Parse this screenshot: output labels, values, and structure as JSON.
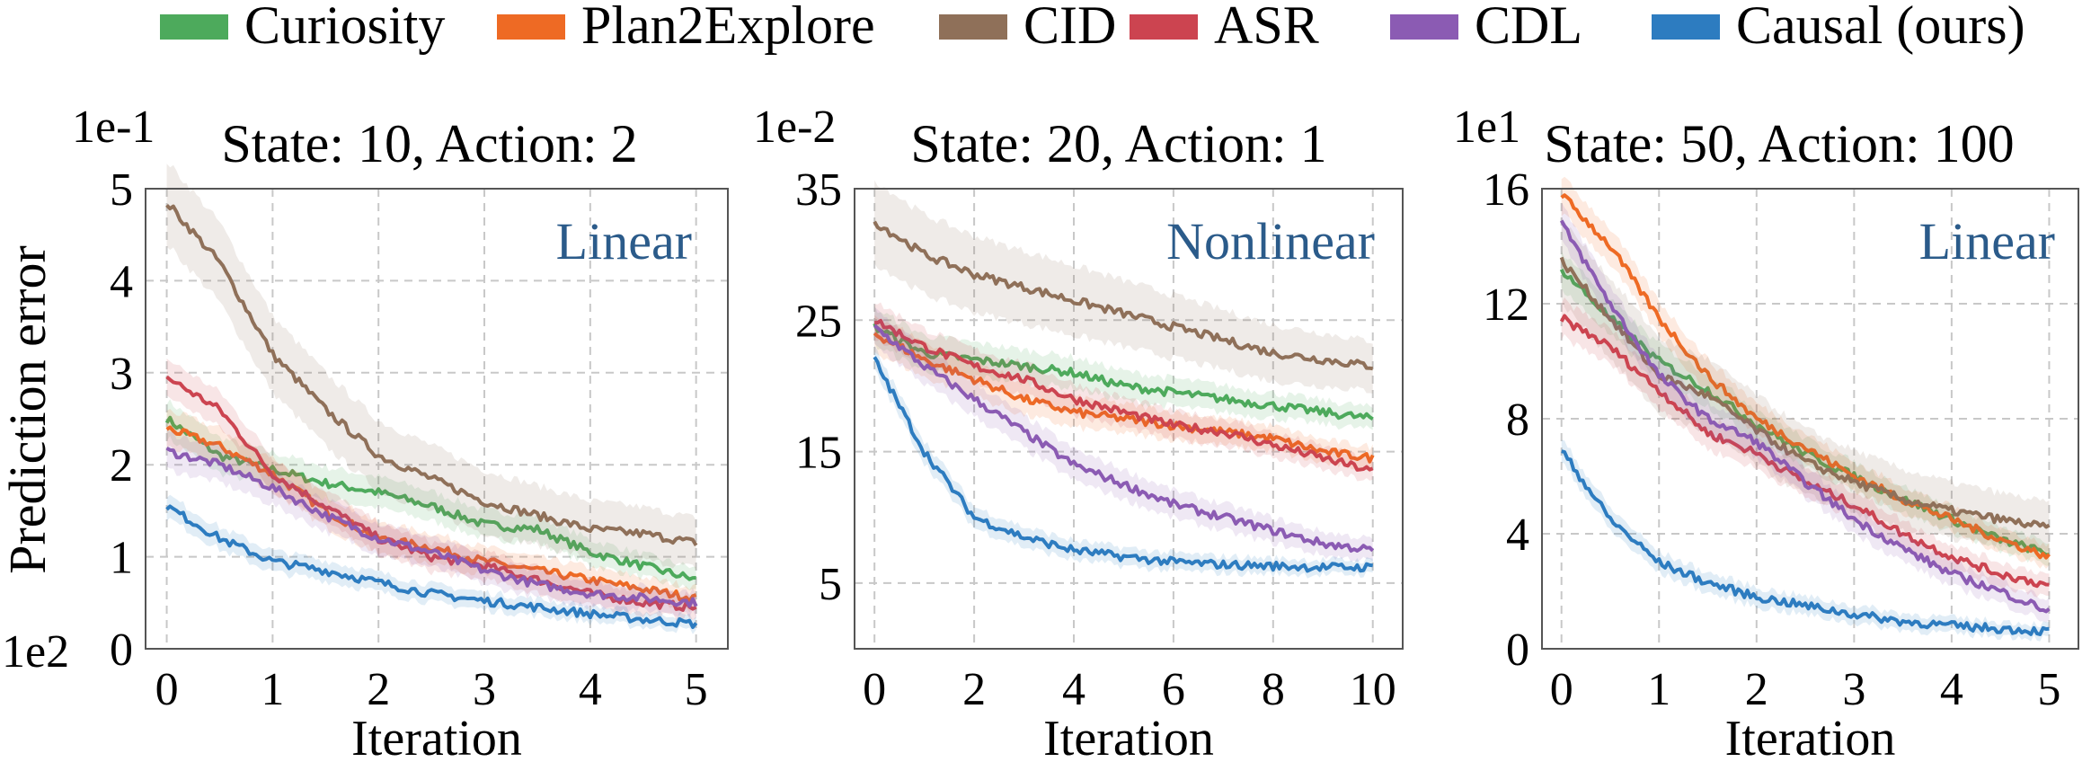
{
  "legend": [
    {
      "name": "Curiosity",
      "color": "#4daa5c"
    },
    {
      "name": "Plan2Explore",
      "color": "#ee6a24"
    },
    {
      "name": "CID",
      "color": "#8f7059"
    },
    {
      "name": "ASR",
      "color": "#cc4450"
    },
    {
      "name": "CDL",
      "color": "#8b5bb3"
    },
    {
      "name": "Causal (ours)",
      "color": "#2d7cc0"
    }
  ],
  "chart_data": [
    {
      "type": "line",
      "title": "State: 10, Action: 2",
      "regime": "Linear",
      "xlabel": "Iteration",
      "ylabel": "Prediction error",
      "y_multiplier": "1e-1",
      "x_multiplier": "1e2",
      "xlim": [
        -0.2,
        5.3
      ],
      "ylim": [
        0,
        5
      ],
      "xticks": [
        0,
        1,
        2,
        3,
        4,
        5
      ],
      "yticks": [
        0,
        1,
        2,
        3,
        4,
        5
      ],
      "grid": true,
      "x": [
        0,
        0.5,
        1,
        1.5,
        2,
        2.5,
        3,
        3.5,
        4,
        4.5,
        5
      ],
      "series": [
        {
          "name": "Curiosity",
          "values": [
            2.5,
            2.1,
            1.95,
            1.8,
            1.7,
            1.55,
            1.35,
            1.3,
            1.05,
            0.9,
            0.75
          ]
        },
        {
          "name": "Plan2Explore",
          "values": [
            2.4,
            2.2,
            1.9,
            1.5,
            1.2,
            1.1,
            0.95,
            0.85,
            0.75,
            0.65,
            0.55
          ]
        },
        {
          "name": "CID",
          "values": [
            4.85,
            4.2,
            3.2,
            2.6,
            2.1,
            1.85,
            1.6,
            1.45,
            1.3,
            1.25,
            1.15
          ]
        },
        {
          "name": "ASR",
          "values": [
            2.95,
            2.6,
            1.9,
            1.55,
            1.2,
            1.0,
            0.9,
            0.75,
            0.6,
            0.5,
            0.45
          ]
        },
        {
          "name": "CDL",
          "values": [
            2.15,
            2.0,
            1.75,
            1.45,
            1.2,
            1.05,
            0.85,
            0.7,
            0.6,
            0.55,
            0.5
          ]
        },
        {
          "name": "Causal (ours)",
          "values": [
            1.55,
            1.2,
            0.95,
            0.85,
            0.72,
            0.6,
            0.52,
            0.45,
            0.38,
            0.32,
            0.27
          ]
        }
      ]
    },
    {
      "type": "line",
      "title": "State: 20, Action: 1",
      "regime": "Nonlinear",
      "xlabel": "Iteration",
      "ylabel": "",
      "y_multiplier": "1e-2",
      "x_multiplier": "",
      "xlim": [
        -0.4,
        10.6
      ],
      "ylim": [
        0,
        35
      ],
      "xticks": [
        0,
        2,
        4,
        6,
        8,
        10
      ],
      "yticks": [
        5,
        15,
        25,
        35
      ],
      "grid": true,
      "x": [
        0,
        1,
        2,
        3,
        4,
        5,
        6,
        7,
        8,
        9,
        10
      ],
      "series": [
        {
          "name": "Curiosity",
          "values": [
            24.5,
            22.5,
            22,
            21.5,
            21,
            20,
            19.5,
            19,
            18.5,
            18,
            17.5
          ]
        },
        {
          "name": "Plan2Explore",
          "values": [
            24,
            22,
            20.5,
            19,
            18,
            17.5,
            17,
            16.5,
            16,
            15,
            14.5
          ]
        },
        {
          "name": "CID",
          "values": [
            32.5,
            30,
            28.5,
            27.5,
            26.5,
            25.5,
            24.5,
            23.5,
            22.5,
            22,
            21.5
          ]
        },
        {
          "name": "ASR",
          "values": [
            25,
            23,
            21.5,
            20.5,
            19,
            18,
            17,
            16.5,
            15.5,
            14.5,
            13.5
          ]
        },
        {
          "name": "CDL",
          "values": [
            24.5,
            21.5,
            19,
            16.5,
            14,
            12.5,
            11,
            10,
            9,
            8,
            7.5
          ]
        },
        {
          "name": "Causal (ours)",
          "values": [
            22,
            15,
            10,
            8.5,
            7.5,
            7,
            6.6,
            6.4,
            6.3,
            6.2,
            6.2
          ]
        }
      ]
    },
    {
      "type": "line",
      "title": "State: 50, Action: 100",
      "regime": "Linear",
      "xlabel": "Iteration",
      "ylabel": "",
      "y_multiplier": "1e1",
      "x_multiplier": "",
      "xlim": [
        -0.2,
        5.3
      ],
      "ylim": [
        0,
        16
      ],
      "xticks": [
        0,
        1,
        2,
        3,
        4,
        5
      ],
      "yticks": [
        0,
        4,
        8,
        12,
        16
      ],
      "grid": true,
      "x": [
        0,
        0.5,
        1,
        1.5,
        2,
        2.5,
        3,
        3.5,
        4,
        4.5,
        5
      ],
      "series": [
        {
          "name": "Curiosity",
          "values": [
            13.2,
            11.5,
            10,
            9,
            7.8,
            6.8,
            6,
            5.2,
            4.5,
            3.8,
            3.3
          ]
        },
        {
          "name": "Plan2Explore",
          "values": [
            15.8,
            14,
            11.5,
            9.5,
            8,
            7,
            6,
            5.2,
            4.5,
            3.8,
            3.2
          ]
        },
        {
          "name": "CID",
          "values": [
            13.5,
            11.5,
            9.5,
            8.8,
            7.6,
            6.5,
            5.8,
            5.2,
            4.8,
            4.5,
            4.2
          ]
        },
        {
          "name": "ASR",
          "values": [
            11.5,
            10.5,
            9,
            7.5,
            6.8,
            5.8,
            5,
            4,
            3.2,
            2.6,
            2.2
          ]
        },
        {
          "name": "CDL",
          "values": [
            14.8,
            12,
            9.5,
            8,
            7.2,
            5.8,
            4.5,
            3.5,
            2.6,
            2,
            1.3
          ]
        },
        {
          "name": "Causal (ours)",
          "values": [
            6.9,
            4.5,
            3,
            2.3,
            1.8,
            1.5,
            1.2,
            0.95,
            0.8,
            0.7,
            0.6
          ]
        }
      ]
    }
  ]
}
